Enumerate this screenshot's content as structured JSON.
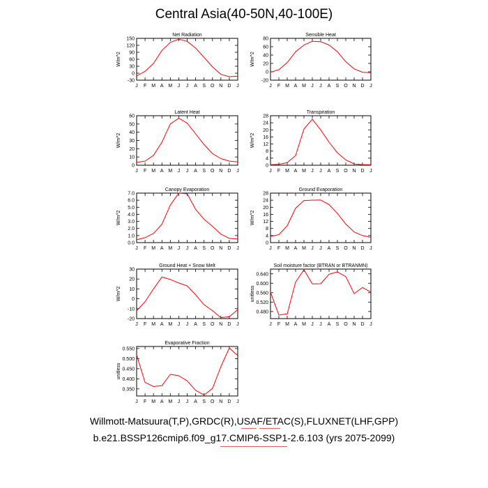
{
  "title": "Central Asia(40-50N,40-100E)",
  "footer": {
    "line1": "Willmott-Matsuura(T,P),GRDC(R),USAF/ETAC(S),FLUXNET(LHF,GPP)",
    "line2": "b.e21.BSSP126cmip6.f09_g17.CMIP6-SSP1-2.6.103 (yrs 2075-2099)"
  },
  "colors": {
    "series": "#ff0000",
    "axis": "#000000"
  },
  "chart_data": [
    {
      "type": "line",
      "title": "Net Radiation",
      "ylabel": "W/m^2",
      "categories": [
        "J",
        "F",
        "M",
        "A",
        "M",
        "J",
        "J",
        "A",
        "S",
        "O",
        "N",
        "D",
        "J"
      ],
      "ylim": [
        -30,
        150
      ],
      "yticks": [
        "150",
        "120",
        "90",
        "60",
        "30",
        "0",
        "-30"
      ],
      "values": [
        -12,
        8,
        42,
        98,
        133,
        146,
        137,
        108,
        68,
        27,
        -5,
        -15,
        -13
      ]
    },
    {
      "type": "line",
      "title": "Sensible Heat",
      "ylabel": "W/m^2",
      "categories": [
        "J",
        "F",
        "M",
        "A",
        "M",
        "J",
        "J",
        "A",
        "S",
        "O",
        "N",
        "D",
        "J"
      ],
      "ylim": [
        -20,
        80
      ],
      "yticks": [
        "80",
        "60",
        "40",
        "20",
        "0",
        "-20"
      ],
      "values": [
        -1,
        5,
        22,
        48,
        64,
        73,
        72,
        64,
        48,
        24,
        7,
        -1,
        -2
      ]
    },
    {
      "type": "line",
      "title": "Latent Heat",
      "ylabel": "W/m^2",
      "categories": [
        "J",
        "F",
        "M",
        "A",
        "M",
        "J",
        "J",
        "A",
        "S",
        "O",
        "N",
        "D",
        "J"
      ],
      "ylim": [
        0,
        60
      ],
      "yticks": [
        "60",
        "50",
        "40",
        "30",
        "20",
        "10",
        "0"
      ],
      "values": [
        3.5,
        5,
        12,
        28,
        50,
        57,
        51,
        38,
        25,
        14,
        8,
        5,
        4
      ]
    },
    {
      "type": "line",
      "title": "Transpiration",
      "ylabel": "W/m^2",
      "categories": [
        "J",
        "F",
        "M",
        "A",
        "M",
        "J",
        "J",
        "A",
        "S",
        "O",
        "N",
        "D",
        "J"
      ],
      "ylim": [
        0,
        28
      ],
      "yticks": [
        "28",
        "24",
        "20",
        "16",
        "12",
        "8",
        "4",
        "0"
      ],
      "values": [
        0.3,
        0.5,
        1.5,
        5.5,
        20.5,
        26,
        20,
        13,
        7,
        3,
        0.8,
        0.3,
        0.3
      ]
    },
    {
      "type": "line",
      "title": "Canopy Evaporation",
      "ylabel": "W/m^2",
      "categories": [
        "J",
        "F",
        "M",
        "A",
        "M",
        "J",
        "J",
        "A",
        "S",
        "O",
        "N",
        "D",
        "J"
      ],
      "ylim": [
        0,
        7
      ],
      "yticks": [
        "7.0",
        "6.0",
        "5.0",
        "4.0",
        "3.0",
        "2.0",
        "1.0",
        "0.0"
      ],
      "values": [
        0.4,
        0.7,
        1.3,
        2.6,
        5.3,
        7.0,
        6.9,
        4.7,
        3.3,
        2.3,
        1.2,
        0.6,
        0.5
      ]
    },
    {
      "type": "line",
      "title": "Ground Evaporation",
      "ylabel": "W/m^2",
      "categories": [
        "J",
        "F",
        "M",
        "A",
        "M",
        "J",
        "J",
        "A",
        "S",
        "O",
        "N",
        "D",
        "J"
      ],
      "ylim": [
        0,
        28
      ],
      "yticks": [
        "28",
        "24",
        "20",
        "16",
        "12",
        "8",
        "4",
        "0"
      ],
      "values": [
        3.5,
        4.5,
        9.5,
        19.5,
        23.8,
        24,
        24.1,
        21.5,
        16.5,
        10.5,
        6,
        4,
        3
      ]
    },
    {
      "type": "line",
      "title": "Ground Heat + Snow Melt",
      "ylabel": "W/m^2",
      "categories": [
        "J",
        "F",
        "M",
        "A",
        "M",
        "J",
        "J",
        "A",
        "S",
        "O",
        "N",
        "D",
        "J"
      ],
      "ylim": [
        -20,
        30
      ],
      "yticks": [
        "30",
        "20",
        "10",
        "0",
        "-10",
        "-20"
      ],
      "values": [
        -12,
        -3,
        10,
        22,
        19.5,
        16,
        13,
        4,
        -6,
        -12,
        -19,
        -18,
        -11
      ]
    },
    {
      "type": "line",
      "title": "Soil moisture factor (BTRAN or BTRANMN)",
      "ylabel": "unitless",
      "categories": [
        "J",
        "F",
        "M",
        "A",
        "M",
        "J",
        "J",
        "A",
        "S",
        "O",
        "N",
        "D",
        "J"
      ],
      "ylim": [
        0.45,
        0.66
      ],
      "yticks": [
        "0.640",
        "0.600",
        "0.560",
        "0.520",
        "0.480"
      ],
      "values": [
        0.562,
        0.465,
        0.47,
        0.605,
        0.657,
        0.597,
        0.598,
        0.638,
        0.648,
        0.628,
        0.556,
        0.582,
        0.562
      ]
    },
    {
      "type": "line",
      "title": "Evaporative Fraction",
      "ylabel": "unitless",
      "categories": [
        "J",
        "F",
        "M",
        "A",
        "M",
        "J",
        "J",
        "A",
        "S",
        "O",
        "N",
        "D",
        "J"
      ],
      "ylim": [
        0.315,
        0.56
      ],
      "yticks": [
        "0.550",
        "0.500",
        "0.450",
        "0.400",
        "0.350"
      ],
      "values": [
        0.518,
        0.382,
        0.362,
        0.366,
        0.422,
        0.415,
        0.39,
        0.343,
        0.32,
        0.352,
        0.46,
        0.552,
        0.515
      ]
    }
  ]
}
